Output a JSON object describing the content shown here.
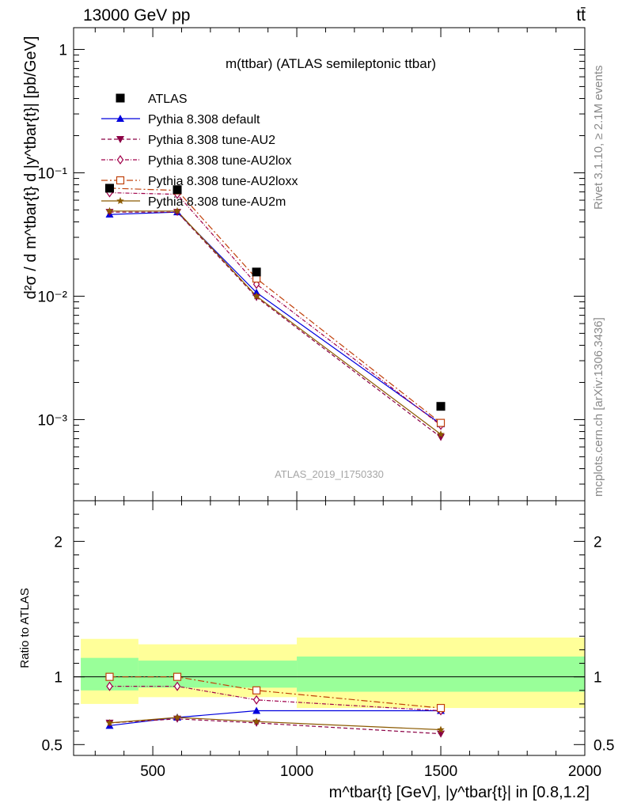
{
  "header": {
    "left": "13000 GeV pp",
    "right": "tt̄"
  },
  "side_labels": {
    "rivet": "Rivet 3.1.10, ≥ 2.1M events",
    "mcplots": "mcplots.cern.ch [arXiv:1306.3436]"
  },
  "chart_data": [
    {
      "type": "line",
      "title": "m(ttbar) (ATLAS semileptonic ttbar)",
      "watermark": "ATLAS_2019_I1750330",
      "ylabel": "d²σ / d m^tbar{t} d |y^tbar{t}| [pb/GeV]",
      "yscale": "log",
      "xlim": [
        225,
        2000
      ],
      "ylim": [
        0.00022,
        1.5
      ],
      "yticks": [
        {
          "value": 0.001,
          "label": "10⁻³"
        },
        {
          "value": 0.01,
          "label": "10⁻²"
        },
        {
          "value": 0.1,
          "label": "10⁻¹"
        },
        {
          "value": 1,
          "label": "1"
        }
      ],
      "legend_position": "top-left",
      "x": [
        350,
        585,
        860,
        1500
      ],
      "data": {
        "name": "ATLAS",
        "values": [
          0.075,
          0.073,
          0.0157,
          0.00128
        ]
      },
      "series": [
        {
          "name": "Pythia 8.308 default",
          "color": "#0000dd",
          "marker": "triangle-up",
          "dash": "solid",
          "values": [
            0.046,
            0.048,
            0.0107,
            0.00092
          ]
        },
        {
          "name": "Pythia 8.308 tune-AU2",
          "color": "#8b0045",
          "marker": "triangle-down",
          "dash": "5,3",
          "values": [
            0.048,
            0.048,
            0.0098,
            0.00072
          ]
        },
        {
          "name": "Pythia 8.308 tune-AU2lox",
          "color": "#a0004a",
          "marker": "diamond-open",
          "dash": "5,2,1,2",
          "values": [
            0.069,
            0.067,
            0.0125,
            0.0009
          ]
        },
        {
          "name": "Pythia 8.308 tune-AU2loxx",
          "color": "#c0400a",
          "marker": "square-open",
          "dash": "8,3,2,3",
          "values": [
            0.075,
            0.072,
            0.0139,
            0.00094
          ]
        },
        {
          "name": "Pythia 8.308 tune-AU2m",
          "color": "#8b5a00",
          "marker": "star",
          "dash": "solid",
          "values": [
            0.049,
            0.049,
            0.01,
            0.00076
          ]
        }
      ]
    },
    {
      "type": "line",
      "ylabel": "Ratio to ATLAS",
      "xlabel": "m^tbar{t} [GeV], |y^tbar{t}| in [0.8,1.2]",
      "xlim": [
        225,
        2000
      ],
      "ylim": [
        0.42,
        2.3
      ],
      "xticks": [
        500,
        1000,
        1500,
        2000
      ],
      "yticks": [
        0.5,
        1,
        2
      ],
      "reference": 1,
      "bins": [
        {
          "lo": 250,
          "hi": 450,
          "band_outer": [
            0.8,
            1.28
          ],
          "band_inner": [
            0.9,
            1.14
          ]
        },
        {
          "lo": 450,
          "hi": 1000,
          "band_outer": [
            0.85,
            1.24
          ],
          "band_inner": [
            0.92,
            1.12
          ]
        },
        {
          "lo": 1000,
          "hi": 2000,
          "band_outer": [
            0.77,
            1.29
          ],
          "band_inner": [
            0.89,
            1.15
          ]
        }
      ],
      "x": [
        350,
        585,
        860,
        1500
      ],
      "series": [
        {
          "name": "Pythia 8.308 default",
          "values": [
            0.64,
            0.7,
            0.75,
            0.75
          ]
        },
        {
          "name": "Pythia 8.308 tune-AU2",
          "values": [
            0.66,
            0.69,
            0.66,
            0.58
          ]
        },
        {
          "name": "Pythia 8.308 tune-AU2lox",
          "values": [
            0.93,
            0.93,
            0.83,
            0.75
          ]
        },
        {
          "name": "Pythia 8.308 tune-AU2loxx",
          "values": [
            1.0,
            1.0,
            0.9,
            0.77
          ]
        },
        {
          "name": "Pythia 8.308 tune-AU2m",
          "values": [
            0.66,
            0.7,
            0.67,
            0.61
          ]
        }
      ]
    }
  ]
}
